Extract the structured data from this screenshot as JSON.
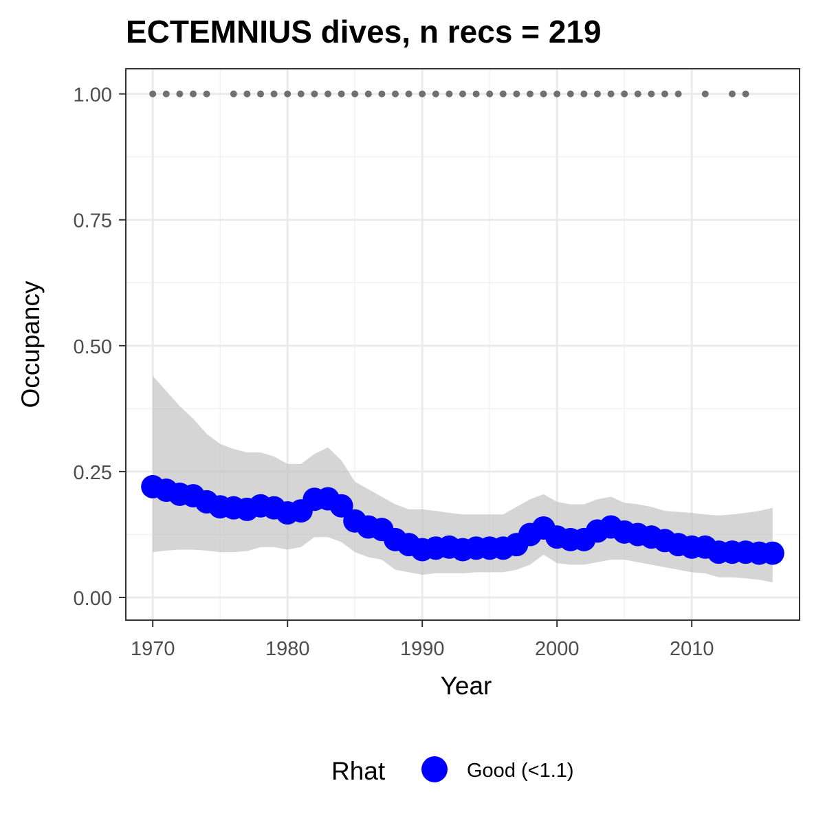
{
  "chart_data": {
    "type": "line",
    "title": "ECTEMNIUS dives, n recs = 219",
    "xlabel": "Year",
    "ylabel": "Occupancy",
    "xlim": [
      1968,
      2018
    ],
    "ylim": [
      -0.045,
      1.05
    ],
    "x_ticks": [
      1970,
      1980,
      1990,
      2000,
      2010
    ],
    "x_tick_labels": [
      "1970",
      "1980",
      "1990",
      "2000",
      "2010"
    ],
    "y_ticks": [
      0,
      0.25,
      0.5,
      0.75,
      1.0
    ],
    "y_tick_labels": [
      "0.00",
      "0.25",
      "0.50",
      "0.75",
      "1.00"
    ],
    "grid": true,
    "legend": {
      "title": "Rhat",
      "position": "bottom",
      "entries": [
        {
          "label": "Good (<1.1)",
          "color": "#0000ff"
        }
      ]
    },
    "colors": {
      "mean": "#0000ff",
      "ribbon": "#bebebe",
      "records": "#707070"
    },
    "x": [
      1970,
      1971,
      1972,
      1973,
      1974,
      1975,
      1976,
      1977,
      1978,
      1979,
      1980,
      1981,
      1982,
      1983,
      1984,
      1985,
      1986,
      1987,
      1988,
      1989,
      1990,
      1991,
      1992,
      1993,
      1994,
      1995,
      1996,
      1997,
      1998,
      1999,
      2000,
      2001,
      2002,
      2003,
      2004,
      2005,
      2006,
      2007,
      2008,
      2009,
      2010,
      2011,
      2012,
      2013,
      2014,
      2015,
      2016
    ],
    "series": [
      {
        "values": [
          0.22,
          0.213,
          0.205,
          0.202,
          0.19,
          0.18,
          0.178,
          0.175,
          0.182,
          0.178,
          0.168,
          0.172,
          0.195,
          0.196,
          0.182,
          0.152,
          0.14,
          0.135,
          0.115,
          0.105,
          0.095,
          0.098,
          0.1,
          0.095,
          0.098,
          0.098,
          0.098,
          0.105,
          0.125,
          0.138,
          0.12,
          0.115,
          0.115,
          0.132,
          0.14,
          0.13,
          0.125,
          0.12,
          0.113,
          0.105,
          0.1,
          0.1,
          0.09,
          0.09,
          0.09,
          0.088,
          0.088
        ],
        "lower": [
          0.09,
          0.093,
          0.095,
          0.095,
          0.093,
          0.09,
          0.09,
          0.092,
          0.1,
          0.1,
          0.095,
          0.1,
          0.12,
          0.12,
          0.11,
          0.09,
          0.08,
          0.075,
          0.055,
          0.05,
          0.045,
          0.048,
          0.048,
          0.048,
          0.05,
          0.05,
          0.05,
          0.055,
          0.065,
          0.085,
          0.068,
          0.065,
          0.065,
          0.07,
          0.075,
          0.075,
          0.07,
          0.065,
          0.06,
          0.055,
          0.05,
          0.048,
          0.04,
          0.04,
          0.038,
          0.035,
          0.03
        ],
        "upper": [
          0.44,
          0.41,
          0.38,
          0.355,
          0.325,
          0.305,
          0.295,
          0.288,
          0.288,
          0.28,
          0.265,
          0.265,
          0.285,
          0.298,
          0.272,
          0.23,
          0.215,
          0.2,
          0.185,
          0.175,
          0.175,
          0.172,
          0.168,
          0.165,
          0.165,
          0.165,
          0.165,
          0.18,
          0.195,
          0.205,
          0.19,
          0.185,
          0.185,
          0.195,
          0.2,
          0.188,
          0.185,
          0.18,
          0.172,
          0.17,
          0.168,
          0.165,
          0.163,
          0.165,
          0.168,
          0.172,
          0.178
        ]
      }
    ],
    "record_years": [
      1970,
      1971,
      1972,
      1973,
      1974,
      1976,
      1977,
      1978,
      1979,
      1980,
      1981,
      1982,
      1983,
      1984,
      1985,
      1986,
      1987,
      1988,
      1989,
      1990,
      1991,
      1992,
      1993,
      1994,
      1995,
      1996,
      1997,
      1998,
      1999,
      2000,
      2001,
      2002,
      2003,
      2004,
      2005,
      2006,
      2007,
      2008,
      2009,
      2011,
      2013,
      2014
    ],
    "record_value": 1.0
  }
}
